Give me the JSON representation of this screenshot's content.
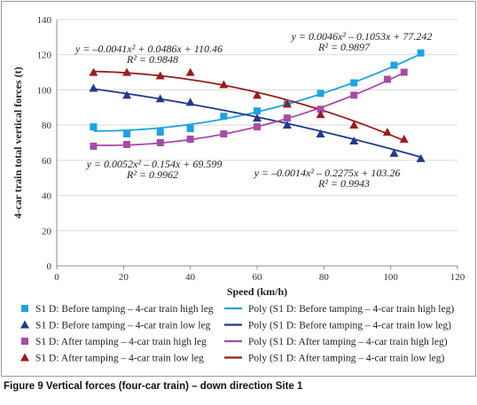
{
  "chart_data": {
    "type": "scatter",
    "xlabel": "Speed (km/h)",
    "ylabel": "4-car train total vertical forces (t)",
    "xlim": [
      0,
      120
    ],
    "ylim": [
      0,
      140
    ],
    "xticks": [
      0,
      20,
      40,
      60,
      80,
      100,
      120
    ],
    "yticks": [
      0,
      20,
      40,
      60,
      80,
      100,
      120,
      140
    ],
    "grid": "horizontal",
    "legend_position": "bottom",
    "series": [
      {
        "name": "S1 D: Before tamping – 4-car train high leg",
        "marker": "square",
        "color": "#1aa3e0",
        "x": [
          11,
          21,
          31,
          40,
          50,
          60,
          69,
          79,
          89,
          101,
          109
        ],
        "y": [
          79,
          75,
          76,
          78,
          85,
          88,
          92,
          98,
          104,
          114,
          121
        ]
      },
      {
        "name": "S1 D: Before tamping – 4-car train low leg",
        "marker": "triangle",
        "color": "#1f3a8a",
        "x": [
          11,
          21,
          31,
          40,
          60,
          69,
          79,
          89,
          101,
          109
        ],
        "y": [
          101,
          97,
          95,
          93,
          84,
          80,
          75,
          71,
          64,
          61
        ]
      },
      {
        "name": "S1 D: After tamping – 4-car train high leg",
        "marker": "square",
        "color": "#a64ca6",
        "x": [
          11,
          21,
          31,
          40,
          50,
          60,
          69,
          79,
          89,
          99,
          104
        ],
        "y": [
          68,
          69,
          70,
          72,
          75,
          79,
          84,
          89,
          97,
          106,
          110
        ]
      },
      {
        "name": "S1 D: After tamping – 4-car train low leg",
        "marker": "triangle",
        "color": "#9b1c1c",
        "x": [
          11,
          21,
          31,
          40,
          50,
          60,
          69,
          79,
          89,
          99,
          104
        ],
        "y": [
          110,
          110,
          108,
          110,
          103,
          97,
          92,
          86,
          80,
          76,
          72
        ]
      }
    ],
    "trendlines": [
      {
        "name": "Poly (S1 D: Before tamping – 4-car train high leg)",
        "color": "#1aa3e0",
        "coefficients": [
          0.0046,
          -0.1053,
          77.242
        ],
        "x_range": [
          11,
          109
        ],
        "equation": "y = 0.0046x² – 0.1053x + 77.242",
        "r2": "R² = 0.9897"
      },
      {
        "name": "Poly (S1 D: Before tamping – 4-car train low leg)",
        "color": "#1f3a8a",
        "coefficients": [
          -0.0014,
          -0.2275,
          103.26
        ],
        "x_range": [
          11,
          109
        ],
        "equation": "y = –0.0014x² – 0.2275x + 103.26",
        "r2": "R² = 0.9943"
      },
      {
        "name": "Poly (S1 D: After tamping – 4-car train high leg)",
        "color": "#a64ca6",
        "coefficients": [
          0.0052,
          -0.154,
          69.599
        ],
        "x_range": [
          11,
          104
        ],
        "equation": "y = 0.0052x² – 0.154x + 69.599",
        "r2": "R² = 0.9962"
      },
      {
        "name": "Poly (S1 D: After tamping – 4-car train low leg)",
        "color": "#9b1c1c",
        "coefficients": [
          -0.0041,
          0.0486,
          110.46
        ],
        "x_range": [
          11,
          104
        ],
        "equation": "y = –0.0041x² + 0.0486x + 110.46",
        "r2": "R² = 0.9848"
      }
    ]
  },
  "caption": "Figure 9 Vertical forces (four-car train) – down direction Site 1"
}
